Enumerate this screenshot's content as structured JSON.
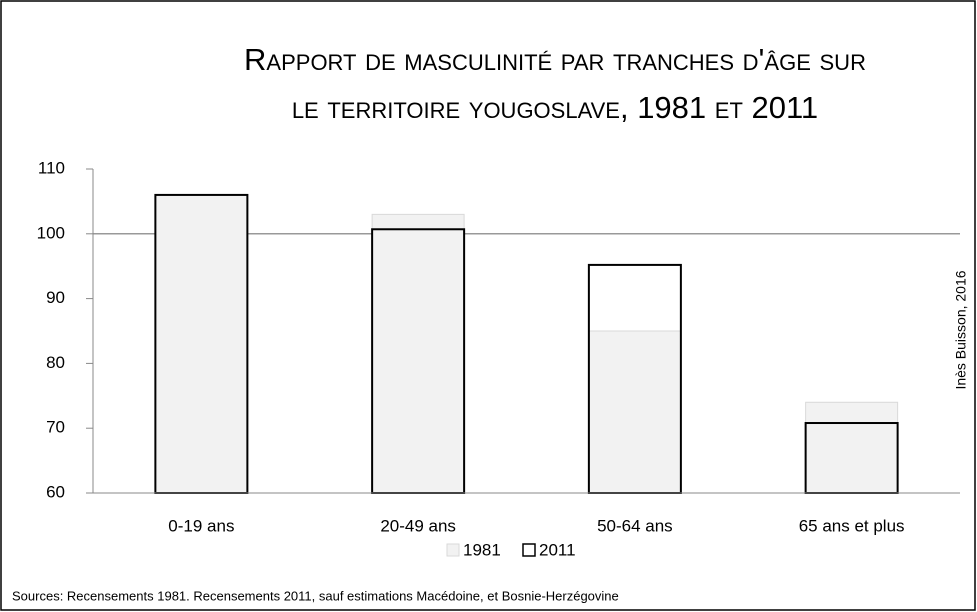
{
  "chart_data": {
    "type": "bar",
    "title": [
      "Rapport de masculinité par tranches d'âge sur",
      "le territoire yougoslave, 1981 et 2011"
    ],
    "categories": [
      "0-19 ans",
      "20-49 ans",
      "50-64 ans",
      "65 ans et plus"
    ],
    "series": [
      {
        "name": "1981",
        "color": "#f2f2f2",
        "values": [
          106,
          103,
          85,
          74
        ]
      },
      {
        "name": "2011",
        "color": "#000000",
        "values": [
          106,
          100.7,
          95.2,
          70.8
        ]
      }
    ],
    "ylim": [
      60,
      110
    ],
    "yticks": [
      60,
      70,
      80,
      90,
      100,
      110
    ],
    "reference_line": 100,
    "credit": "Inès Buisson, 2016",
    "source": "Sources: Recensements 1981. Recensements 2011, sauf estimations Macédoine, et Bosnie-Herzégovine"
  }
}
